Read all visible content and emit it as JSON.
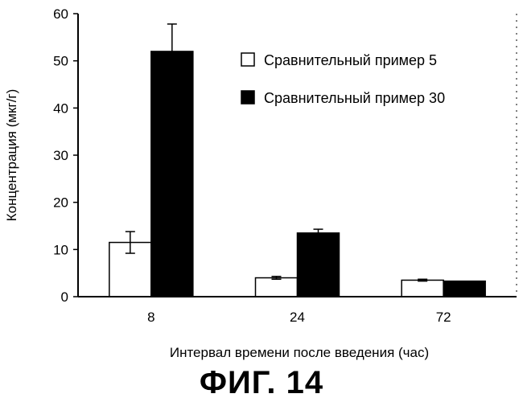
{
  "chart_data": {
    "type": "bar",
    "title": "",
    "xlabel": "Интервал времени после введения (час)",
    "ylabel": "Концентрация (мкг/г)",
    "categories": [
      "8",
      "24",
      "72"
    ],
    "ylim": [
      0,
      60
    ],
    "yticks": [
      "0",
      "10",
      "20",
      "30",
      "40",
      "50",
      "60"
    ],
    "grid": false,
    "legend_position": "top-right",
    "series": [
      {
        "name": "Сравнительный пример 5",
        "fill": "#ffffff",
        "values": [
          11.5,
          4.0,
          3.5
        ],
        "errors": [
          2.3,
          0.3,
          0.2
        ]
      },
      {
        "name": "Сравнительный пример 30",
        "fill": "#000000",
        "values": [
          52.0,
          13.5,
          3.3
        ],
        "errors": [
          5.8,
          0.8,
          0
        ]
      }
    ]
  },
  "figure_caption": "ФИГ. 14"
}
